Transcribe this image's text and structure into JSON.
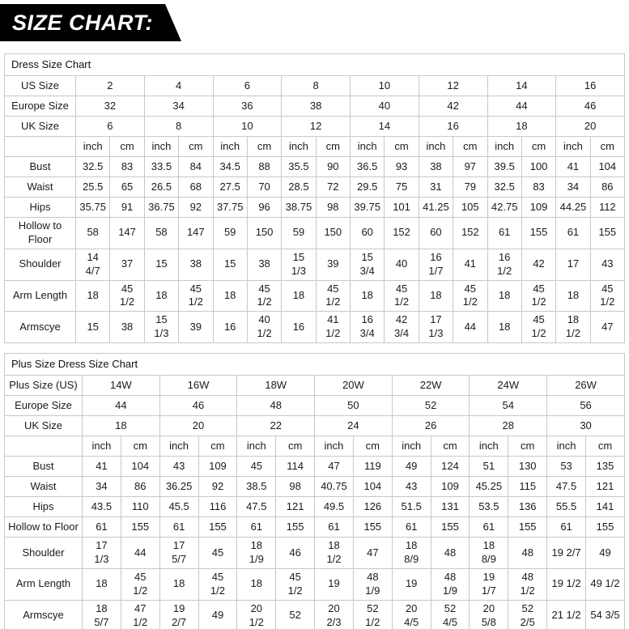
{
  "banner": {
    "title": "SIZE CHART:"
  },
  "colors": {
    "banner_bg": "#000000",
    "banner_text": "#ffffff",
    "border": "#c8c8c8",
    "text": "#1b1b1b",
    "background": "#ffffff"
  },
  "tables": [
    {
      "title": "Dress Size Chart",
      "header_rows": [
        {
          "label": "US Size",
          "values": [
            "2",
            "4",
            "6",
            "8",
            "10",
            "12",
            "14",
            "16"
          ]
        },
        {
          "label": "Europe Size",
          "values": [
            "32",
            "34",
            "36",
            "38",
            "40",
            "42",
            "44",
            "46"
          ]
        },
        {
          "label": "UK Size",
          "values": [
            "6",
            "8",
            "10",
            "12",
            "14",
            "16",
            "18",
            "20"
          ]
        }
      ],
      "unit_labels": [
        "inch",
        "cm"
      ],
      "measurement_rows": [
        {
          "label": "Bust",
          "values": [
            "32.5",
            "83",
            "33.5",
            "84",
            "34.5",
            "88",
            "35.5",
            "90",
            "36.5",
            "93",
            "38",
            "97",
            "39.5",
            "100",
            "41",
            "104"
          ]
        },
        {
          "label": "Waist",
          "values": [
            "25.5",
            "65",
            "26.5",
            "68",
            "27.5",
            "70",
            "28.5",
            "72",
            "29.5",
            "75",
            "31",
            "79",
            "32.5",
            "83",
            "34",
            "86"
          ]
        },
        {
          "label": "Hips",
          "values": [
            "35.75",
            "91",
            "36.75",
            "92",
            "37.75",
            "96",
            "38.75",
            "98",
            "39.75",
            "101",
            "41.25",
            "105",
            "42.75",
            "109",
            "44.25",
            "112"
          ]
        },
        {
          "label": "Hollow to Floor",
          "values": [
            "58",
            "147",
            "58",
            "147",
            "59",
            "150",
            "59",
            "150",
            "60",
            "152",
            "60",
            "152",
            "61",
            "155",
            "61",
            "155"
          ]
        },
        {
          "label": "Shoulder",
          "values": [
            "14\n4/7",
            "37",
            "15",
            "38",
            "15",
            "38",
            "15\n1/3",
            "39",
            "15\n3/4",
            "40",
            "16\n1/7",
            "41",
            "16\n1/2",
            "42",
            "17",
            "43"
          ]
        },
        {
          "label": "Arm Length",
          "values": [
            "18",
            "45\n1/2",
            "18",
            "45\n1/2",
            "18",
            "45\n1/2",
            "18",
            "45\n1/2",
            "18",
            "45\n1/2",
            "18",
            "45\n1/2",
            "18",
            "45\n1/2",
            "18",
            "45\n1/2"
          ]
        },
        {
          "label": "Armscye",
          "values": [
            "15",
            "38",
            "15\n1/3",
            "39",
            "16",
            "40\n1/2",
            "16",
            "41\n1/2",
            "16\n3/4",
            "42\n3/4",
            "17\n1/3",
            "44",
            "18",
            "45\n1/2",
            "18\n1/2",
            "47"
          ]
        }
      ]
    },
    {
      "title": "Plus Size Dress Size Chart",
      "header_rows": [
        {
          "label": "Plus Size (US)",
          "values": [
            "14W",
            "16W",
            "18W",
            "20W",
            "22W",
            "24W",
            "26W"
          ]
        },
        {
          "label": "Europe Size",
          "values": [
            "44",
            "46",
            "48",
            "50",
            "52",
            "54",
            "56"
          ]
        },
        {
          "label": "UK Size",
          "values": [
            "18",
            "20",
            "22",
            "24",
            "26",
            "28",
            "30"
          ]
        }
      ],
      "unit_labels": [
        "inch",
        "cm"
      ],
      "measurement_rows": [
        {
          "label": "Bust",
          "values": [
            "41",
            "104",
            "43",
            "109",
            "45",
            "114",
            "47",
            "119",
            "49",
            "124",
            "51",
            "130",
            "53",
            "135"
          ]
        },
        {
          "label": "Waist",
          "values": [
            "34",
            "86",
            "36.25",
            "92",
            "38.5",
            "98",
            "40.75",
            "104",
            "43",
            "109",
            "45.25",
            "115",
            "47.5",
            "121"
          ]
        },
        {
          "label": "Hips",
          "values": [
            "43.5",
            "110",
            "45.5",
            "116",
            "47.5",
            "121",
            "49.5",
            "126",
            "51.5",
            "131",
            "53.5",
            "136",
            "55.5",
            "141"
          ]
        },
        {
          "label": "Hollow to Floor",
          "values": [
            "61",
            "155",
            "61",
            "155",
            "61",
            "155",
            "61",
            "155",
            "61",
            "155",
            "61",
            "155",
            "61",
            "155"
          ]
        },
        {
          "label": "Shoulder",
          "values": [
            "17\n1/3",
            "44",
            "17\n5/7",
            "45",
            "18\n1/9",
            "46",
            "18\n1/2",
            "47",
            "18\n8/9",
            "48",
            "18\n8/9",
            "48",
            "19 2/7",
            "49"
          ]
        },
        {
          "label": "Arm Length",
          "values": [
            "18",
            "45\n1/2",
            "18",
            "45\n1/2",
            "18",
            "45\n1/2",
            "19",
            "48\n1/9",
            "19",
            "48\n1/9",
            "19\n1/7",
            "48\n1/2",
            "19 1/2",
            "49 1/2"
          ]
        },
        {
          "label": "Armscye",
          "values": [
            "18\n5/7",
            "47\n1/2",
            "19\n2/7",
            "49",
            "20\n1/2",
            "52",
            "20\n2/3",
            "52\n1/2",
            "20\n4/5",
            "52\n4/5",
            "20\n5/8",
            "52\n2/5",
            "21 1/2",
            "54 3/5"
          ]
        }
      ]
    }
  ]
}
